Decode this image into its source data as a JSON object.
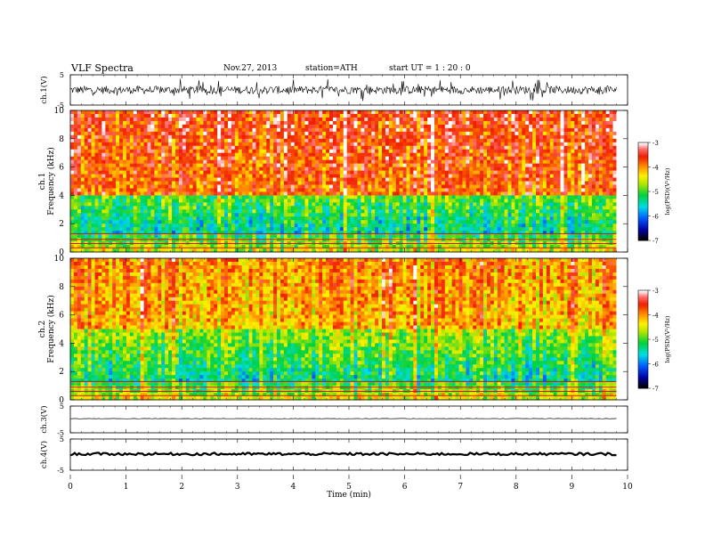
{
  "header": {
    "title": "VLF  Spectra",
    "date": "Nov.27, 2013",
    "station": "station=ATH",
    "start": "start  UT  =   1 : 20 : 0"
  },
  "chart_data": [
    {
      "type": "line",
      "panel": "ch1-waveform",
      "ylabel": "ch.1(V)",
      "yticks": [
        "5",
        "-5"
      ],
      "ylim": [
        -5,
        5
      ],
      "description_level": "noisy waveform roughly between -2 and 2 V"
    },
    {
      "type": "heatmap",
      "panel": "ch1-spectrogram",
      "ylabel_top": "ch.1",
      "ylabel": "Frequency  (kHz)",
      "yticks": [
        "0",
        "2",
        "4",
        "6",
        "8",
        "10"
      ],
      "ylim": [
        0,
        10
      ],
      "colorbar": {
        "label": "log(PSD)(V²/Hz)",
        "ticks": [
          "-3",
          "-4",
          "-5",
          "-6",
          "-7"
        ],
        "range": [
          -7,
          -3
        ],
        "colors": [
          "#000000",
          "#0000cc",
          "#0080ff",
          "#00e0e0",
          "#00e000",
          "#ffff00",
          "#ff8000",
          "#ff0000",
          "#ff6060",
          "#ffffff"
        ]
      },
      "boundary_low_kHz": 4.0
    },
    {
      "type": "heatmap",
      "panel": "ch2-spectrogram",
      "ylabel_top": "ch.2",
      "ylabel": "Frequency  (kHz)",
      "yticks": [
        "0",
        "2",
        "4",
        "6",
        "8",
        "10"
      ],
      "ylim": [
        0,
        10
      ],
      "colorbar": {
        "label": "log(PSD)(V²/Hz)",
        "ticks": [
          "-3",
          "-4",
          "-5",
          "-6",
          "-7"
        ],
        "range": [
          -7,
          -3
        ]
      },
      "boundary_low_kHz": 5.0
    },
    {
      "type": "line",
      "panel": "ch3-waveform",
      "ylabel": "ch.3(V)",
      "yticks": [
        "5",
        "-5"
      ],
      "ylim": [
        -5,
        5
      ],
      "level_V": 0.3
    },
    {
      "type": "line",
      "panel": "ch4-waveform",
      "ylabel": "ch.4(V)",
      "yticks": [
        "5",
        "-5"
      ],
      "ylim": [
        -5,
        5
      ],
      "level_V": 0.2
    }
  ],
  "xaxis": {
    "label": "Time  (min)",
    "ticks": [
      "0",
      "1",
      "2",
      "3",
      "4",
      "5",
      "6",
      "7",
      "8",
      "9",
      "10"
    ],
    "range": [
      0,
      10
    ],
    "data_end_min": 9.8
  }
}
